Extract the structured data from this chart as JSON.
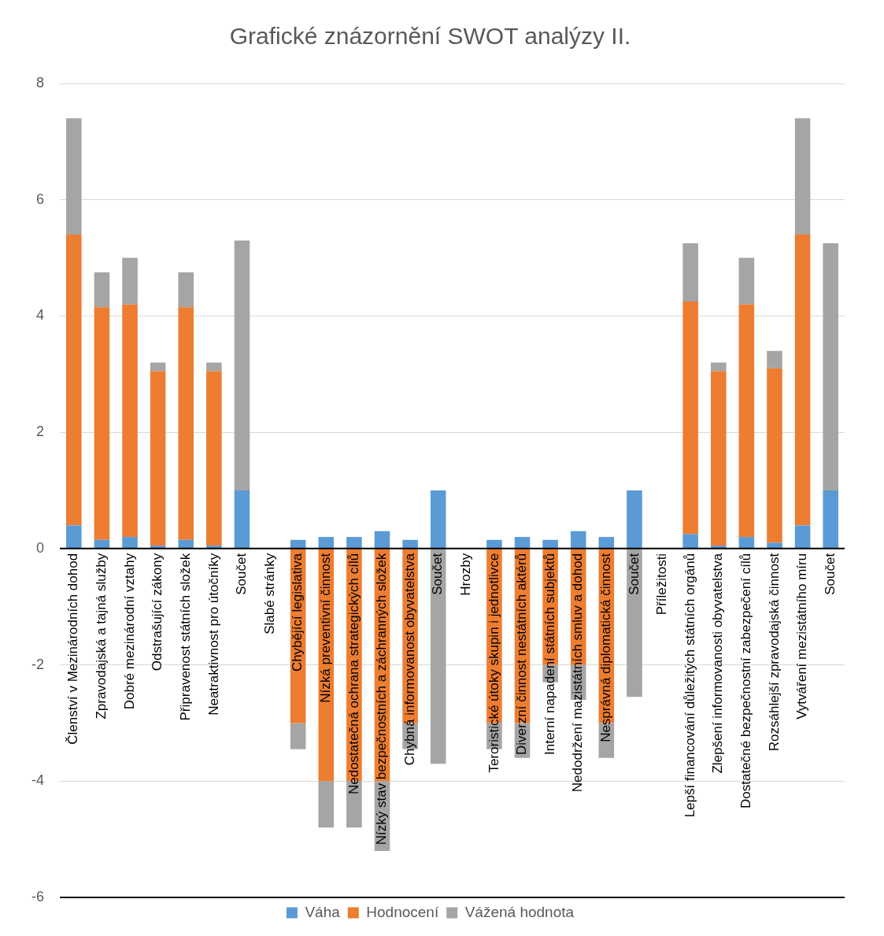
{
  "chart_data": {
    "type": "bar",
    "title": "Grafické znázornění SWOT analýzy II.",
    "stacked": true,
    "categories": [
      "Členství v Mezinárodních dohod",
      "Zpravodajská a tajná služby",
      "Dobré mezinárodní vztahy",
      "Odstrašující zákony",
      "Připravenost státních složek",
      "Neatraktivnost pro útočníky",
      "Součet",
      "Slabé stránky",
      "Chybějící legislativa",
      "Nízká preventivní činnost",
      "Nedostatečná ochrana strategických cílů",
      "Nízký stav bezpečnostních a záchranných složek",
      "Chybná informovanost obyvatelstva",
      "Součet",
      "Hrozby",
      "Teroristické útoky skupin i jednotlivce",
      "Diverzní činnost nestátních aktérů",
      "Interní napadení státních subjektů",
      "Nedodržení mazistátních smluv a dohod",
      "Nesprávná diplomatická činnost",
      "Součet",
      "Příležitosti",
      "Lepší financování důležitých státních orgánů",
      "Zlepšení informovanosti obyvatelstva",
      "Dostatečné bezpečnostní zabezpečení cílů",
      "Rozsáhlejší zpravodajská činnost",
      "Vytváření mezistátního míru",
      "Součet"
    ],
    "series": [
      {
        "name": "Váha",
        "color": "#5b9bd5",
        "values": [
          0.4,
          0.15,
          0.2,
          0.05,
          0.15,
          0.05,
          1,
          null,
          0.15,
          0.2,
          0.2,
          0.3,
          0.15,
          1,
          null,
          0.15,
          0.2,
          0.15,
          0.3,
          0.2,
          1,
          null,
          0.25,
          0.05,
          0.2,
          0.1,
          0.4,
          1
        ]
      },
      {
        "name": "Hodnocení",
        "color": "#ed7d31",
        "values": [
          5,
          4,
          4,
          3,
          4,
          3,
          null,
          null,
          -3,
          -4,
          -4,
          -4,
          -3,
          null,
          null,
          -3,
          -3,
          -2,
          -2,
          -3,
          null,
          null,
          4,
          3,
          4,
          3,
          5,
          null
        ]
      },
      {
        "name": "Vážená hodnota",
        "color": "#a5a5a5",
        "values": [
          2,
          0.6,
          0.8,
          0.15,
          0.6,
          0.15,
          4.3,
          null,
          -0.45,
          -0.8,
          -0.8,
          -1.2,
          -0.45,
          -3.7,
          null,
          -0.45,
          -0.6,
          -0.3,
          -0.6,
          -0.6,
          -2.55,
          null,
          1,
          0.15,
          0.8,
          0.3,
          2,
          4.25
        ]
      }
    ],
    "ylim": [
      -6,
      8
    ],
    "yticks": [
      -6,
      -4,
      -2,
      0,
      2,
      4,
      6,
      8
    ],
    "grid": "y",
    "legend": "bottom"
  }
}
